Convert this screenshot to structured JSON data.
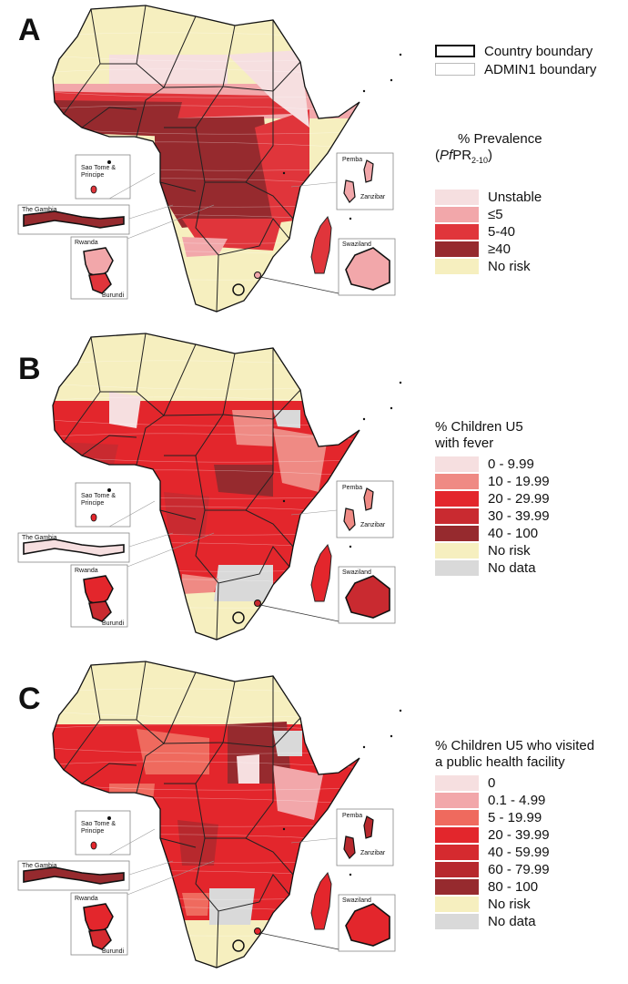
{
  "panels": [
    {
      "label": "A",
      "legend_title": "% Prevalence\n(PfPR2-10)",
      "legend_title_main": "% Prevalence",
      "legend_title_italic": "Pf",
      "legend_title_rest": "PR",
      "legend_title_sub": "2-10",
      "legend": [
        {
          "label": "Unstable",
          "color": "#f6dfe0"
        },
        {
          "label": "≤5",
          "color": "#f2a7aa"
        },
        {
          "label": "5-40",
          "color": "#e0353b"
        },
        {
          "label": "≥40",
          "color": "#962a2e"
        },
        {
          "label": "No risk",
          "color": "#f6efbf"
        }
      ]
    },
    {
      "label": "B",
      "legend_title": "% Children U5\nwith fever",
      "legend": [
        {
          "label": "0 - 9.99",
          "color": "#f6dfe0"
        },
        {
          "label": "10 - 19.99",
          "color": "#ef8a84"
        },
        {
          "label": "20 - 29.99",
          "color": "#e3262c"
        },
        {
          "label": "30 - 39.99",
          "color": "#c92a30"
        },
        {
          "label": "40 - 100",
          "color": "#962a2e"
        },
        {
          "label": "No risk",
          "color": "#f6efbf"
        },
        {
          "label": "No data",
          "color": "#d9d9d9"
        }
      ]
    },
    {
      "label": "C",
      "legend_title": "% Children U5 who visited\na public health facility",
      "legend": [
        {
          "label": "0",
          "color": "#f6dfe0"
        },
        {
          "label": "0.1 - 4.99",
          "color": "#f2a7aa"
        },
        {
          "label": "5 - 19.99",
          "color": "#ef6a5e"
        },
        {
          "label": "20 - 39.99",
          "color": "#e3262c"
        },
        {
          "label": "40 - 59.99",
          "color": "#d52a2f"
        },
        {
          "label": "60 - 79.99",
          "color": "#b7282d"
        },
        {
          "label": "80 - 100",
          "color": "#962a2e"
        },
        {
          "label": "No risk",
          "color": "#f6efbf"
        },
        {
          "label": "No data",
          "color": "#d9d9d9"
        }
      ]
    }
  ],
  "boundary_legend": {
    "country": "Country boundary",
    "admin1": "ADMIN1 boundary"
  },
  "insets": {
    "sao_tome": "Sao Tome &\nPrincipe",
    "gambia": "The Gambia",
    "rwanda": "Rwanda",
    "burundi": "Burundi",
    "pemba": "Pemba",
    "zanzibar": "Zanzibar",
    "swaziland": "Swaziland"
  },
  "colors": {
    "no_risk": "#f6efbf",
    "no_data": "#d9d9d9",
    "border": "#111111"
  }
}
